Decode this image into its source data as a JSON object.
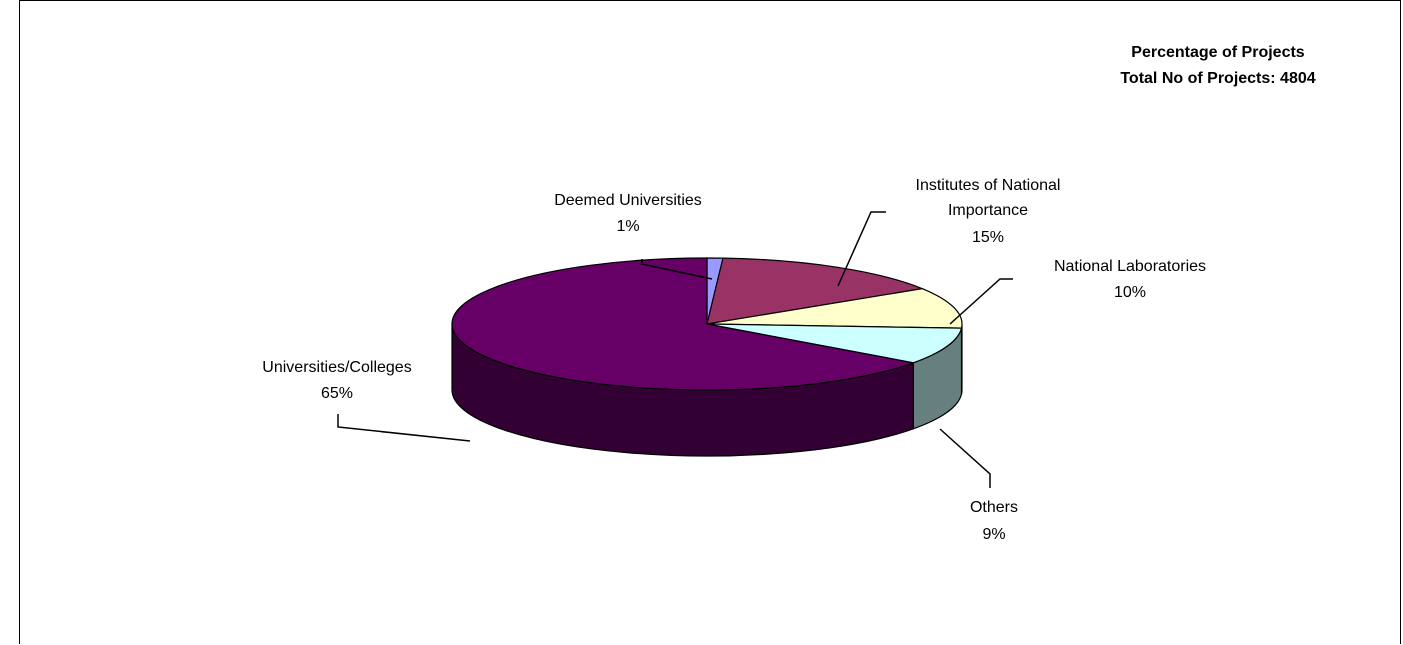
{
  "chart_data": {
    "type": "pie",
    "title": "Percentage of Projects",
    "subtitle": "Total No of Projects: 4804",
    "legend": "none",
    "slices": [
      {
        "label": "Deemed Universities",
        "percent_label": "1%",
        "value": 1,
        "color": "#9999FF"
      },
      {
        "label": "Institutes of National Importance",
        "label_lines": [
          "Institutes of National",
          "Importance"
        ],
        "percent_label": "15%",
        "value": 15,
        "color": "#993366"
      },
      {
        "label": "National Laboratories",
        "percent_label": "10%",
        "value": 10,
        "color": "#FFFFCC"
      },
      {
        "label": "Others",
        "percent_label": "9%",
        "value": 9,
        "color": "#CCFFFF"
      },
      {
        "label": "Universities/Colleges",
        "percent_label": "65%",
        "value": 65,
        "color": "#660066"
      }
    ],
    "side_colors": {
      "Others": "#668080",
      "Universities/Colleges": "#330033"
    }
  }
}
